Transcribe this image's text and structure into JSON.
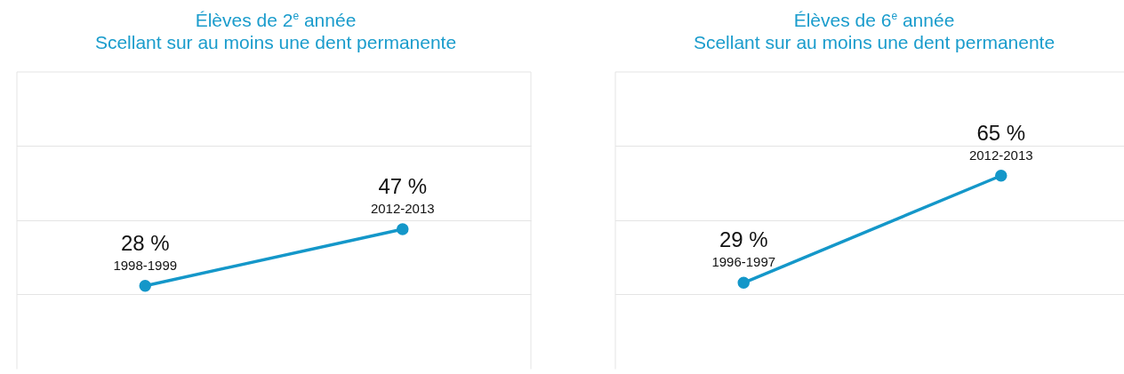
{
  "chart_data": [
    {
      "type": "line",
      "title": "Élèves de 2$^{e}$ année",
      "subtitle": "Scellant sur au moins une dent permanente",
      "categories": [
        "1998-1999",
        "2012-2013"
      ],
      "values": [
        28,
        47
      ],
      "value_labels": [
        "28 %",
        "47 %"
      ],
      "color": "#1497c9",
      "marker": "circle",
      "ylim": [
        0,
        100
      ],
      "yticks": [
        {
          "value": 25,
          "label": null
        },
        {
          "value": 50,
          "label": null
        },
        {
          "value": 75,
          "label": null
        }
      ],
      "tick_labels": false,
      "grid": "y",
      "legend": false
    },
    {
      "type": "line",
      "title": "Élèves de 6$^{e}$ année",
      "subtitle": "Scellant sur au moins une dent permanente",
      "categories": [
        "1996-1997",
        "2012-2013"
      ],
      "values": [
        29,
        65
      ],
      "value_labels": [
        "29 %",
        "65 %"
      ],
      "color": "#1497c9",
      "marker": "circle",
      "ylim": [
        0,
        100
      ],
      "yticks": [
        {
          "value": 25,
          "label": null
        },
        {
          "value": 50,
          "label": null
        },
        {
          "value": 75,
          "label": null
        }
      ],
      "tick_labels": false,
      "grid": "y",
      "legend": false
    }
  ]
}
